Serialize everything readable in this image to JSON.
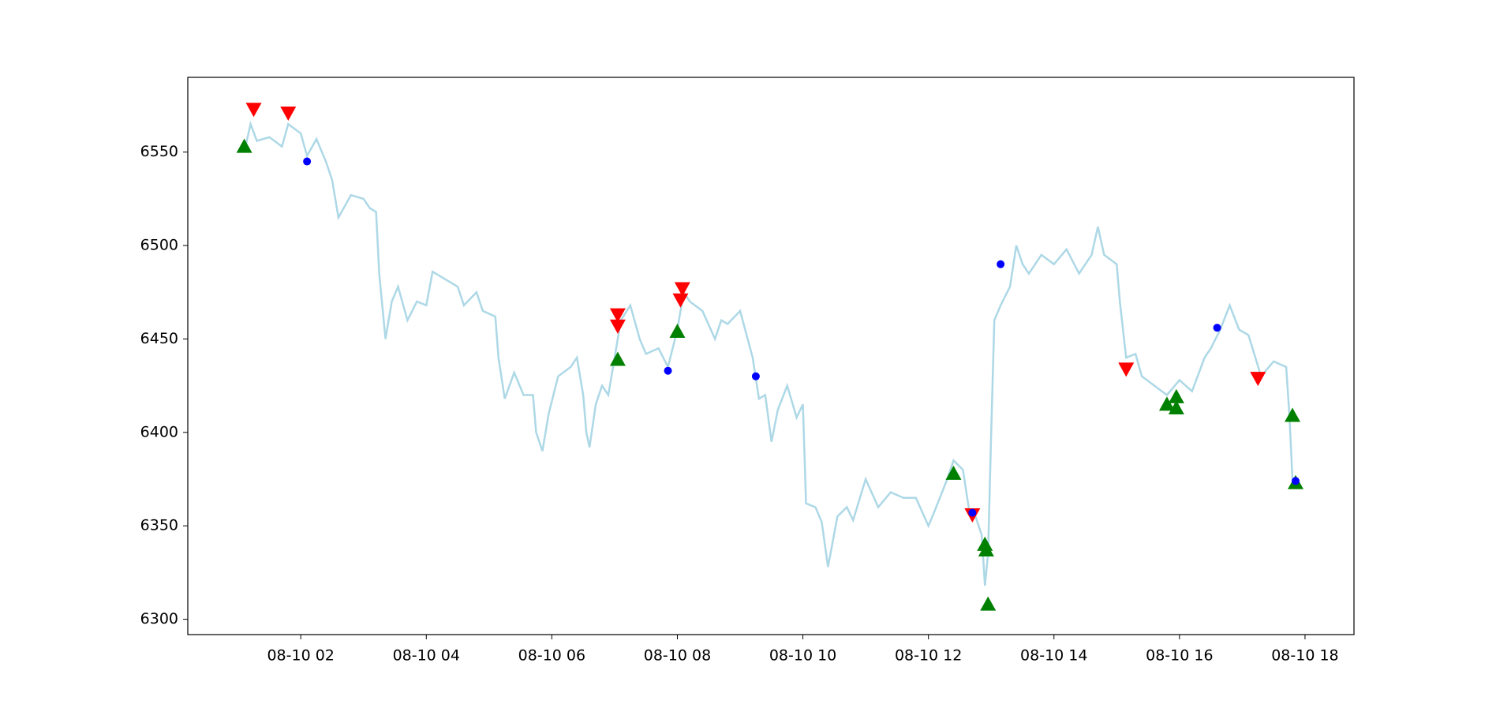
{
  "chart_data": {
    "type": "line",
    "xlim": [
      0.2,
      18.78
    ],
    "ylim": [
      6291.8,
      6590
    ],
    "xticks": [
      {
        "value": 2,
        "label": "08-10 02"
      },
      {
        "value": 4,
        "label": "08-10 04"
      },
      {
        "value": 6,
        "label": "08-10 06"
      },
      {
        "value": 8,
        "label": "08-10 08"
      },
      {
        "value": 10,
        "label": "08-10 10"
      },
      {
        "value": 12,
        "label": "08-10 12"
      },
      {
        "value": 14,
        "label": "08-10 14"
      },
      {
        "value": 16,
        "label": "08-10 16"
      },
      {
        "value": 18,
        "label": "08-10 18"
      }
    ],
    "yticks": [
      6300,
      6350,
      6400,
      6450,
      6500,
      6550
    ],
    "series": [
      {
        "marker": "line",
        "color": "#add8e6",
        "x": [
          1.1,
          1.2,
          1.3,
          1.5,
          1.7,
          1.8,
          2.0,
          2.1,
          2.25,
          2.4,
          2.5,
          2.6,
          2.8,
          3.0,
          3.1,
          3.2,
          3.25,
          3.35,
          3.45,
          3.55,
          3.7,
          3.85,
          4.0,
          4.1,
          4.3,
          4.5,
          4.6,
          4.8,
          4.9,
          5.1,
          5.15,
          5.25,
          5.4,
          5.55,
          5.7,
          5.75,
          5.85,
          5.95,
          6.1,
          6.3,
          6.4,
          6.5,
          6.55,
          6.6,
          6.7,
          6.8,
          6.9,
          7.0,
          7.1,
          7.25,
          7.4,
          7.5,
          7.7,
          7.85,
          8.0,
          8.1,
          8.2,
          8.4,
          8.6,
          8.7,
          8.8,
          9.0,
          9.2,
          9.3,
          9.4,
          9.5,
          9.6,
          9.75,
          9.9,
          10.0,
          10.05,
          10.2,
          10.3,
          10.4,
          10.55,
          10.7,
          10.8,
          11.0,
          11.2,
          11.4,
          11.6,
          11.8,
          12.0,
          12.1,
          12.3,
          12.4,
          12.55,
          12.65,
          12.75,
          12.85,
          12.9,
          12.95,
          13.0,
          13.05,
          13.15,
          13.3,
          13.4,
          13.5,
          13.6,
          13.8,
          14.0,
          14.2,
          14.4,
          14.6,
          14.7,
          14.8,
          15.0,
          15.05,
          15.15,
          15.3,
          15.4,
          15.6,
          15.8,
          16.0,
          16.2,
          16.4,
          16.5,
          16.65,
          16.8,
          16.95,
          17.1,
          17.3,
          17.5,
          17.7,
          17.75,
          17.8,
          17.85
        ],
        "values": [
          6550,
          6565,
          6556,
          6558,
          6553,
          6565,
          6560,
          6548,
          6557,
          6545,
          6535,
          6515,
          6527,
          6525,
          6520,
          6518,
          6485,
          6450,
          6470,
          6478,
          6460,
          6470,
          6468,
          6486,
          6482,
          6478,
          6468,
          6475,
          6465,
          6462,
          6440,
          6418,
          6432,
          6420,
          6420,
          6400,
          6390,
          6410,
          6430,
          6435,
          6440,
          6420,
          6400,
          6392,
          6415,
          6425,
          6420,
          6440,
          6460,
          6468,
          6450,
          6442,
          6445,
          6435,
          6455,
          6475,
          6470,
          6465,
          6450,
          6460,
          6458,
          6465,
          6440,
          6418,
          6420,
          6395,
          6412,
          6425,
          6408,
          6415,
          6362,
          6360,
          6352,
          6328,
          6355,
          6360,
          6353,
          6375,
          6360,
          6368,
          6365,
          6365,
          6350,
          6358,
          6375,
          6385,
          6380,
          6358,
          6355,
          6345,
          6318,
          6335,
          6400,
          6460,
          6468,
          6478,
          6500,
          6490,
          6485,
          6495,
          6490,
          6498,
          6485,
          6495,
          6510,
          6495,
          6490,
          6470,
          6440,
          6442,
          6430,
          6425,
          6420,
          6428,
          6422,
          6440,
          6445,
          6455,
          6468,
          6455,
          6452,
          6430,
          6438,
          6435,
          6410,
          6375,
          6372
        ]
      },
      {
        "marker": "triangle-up",
        "color": "#008000",
        "x": [
          1.1,
          7.05,
          8.0,
          12.4,
          12.9,
          12.92,
          12.95,
          15.8,
          15.95,
          15.95,
          17.8,
          17.85
        ],
        "values": [
          6553,
          6439,
          6454,
          6378,
          6340,
          6337,
          6308,
          6415,
          6413,
          6419,
          6409,
          6373
        ]
      },
      {
        "marker": "triangle-down",
        "color": "#ff0000",
        "x": [
          1.25,
          1.8,
          7.05,
          7.05,
          8.08,
          8.05,
          12.7,
          15.15,
          17.25
        ],
        "values": [
          6573,
          6571,
          6463,
          6457,
          6477,
          6471,
          6356,
          6434,
          6429
        ]
      },
      {
        "marker": "dot",
        "color": "#0000ff",
        "x": [
          2.1,
          7.85,
          9.25,
          12.7,
          13.15,
          16.6,
          17.85
        ],
        "values": [
          6545,
          6433,
          6430,
          6357,
          6490,
          6456,
          6374
        ]
      }
    ]
  }
}
